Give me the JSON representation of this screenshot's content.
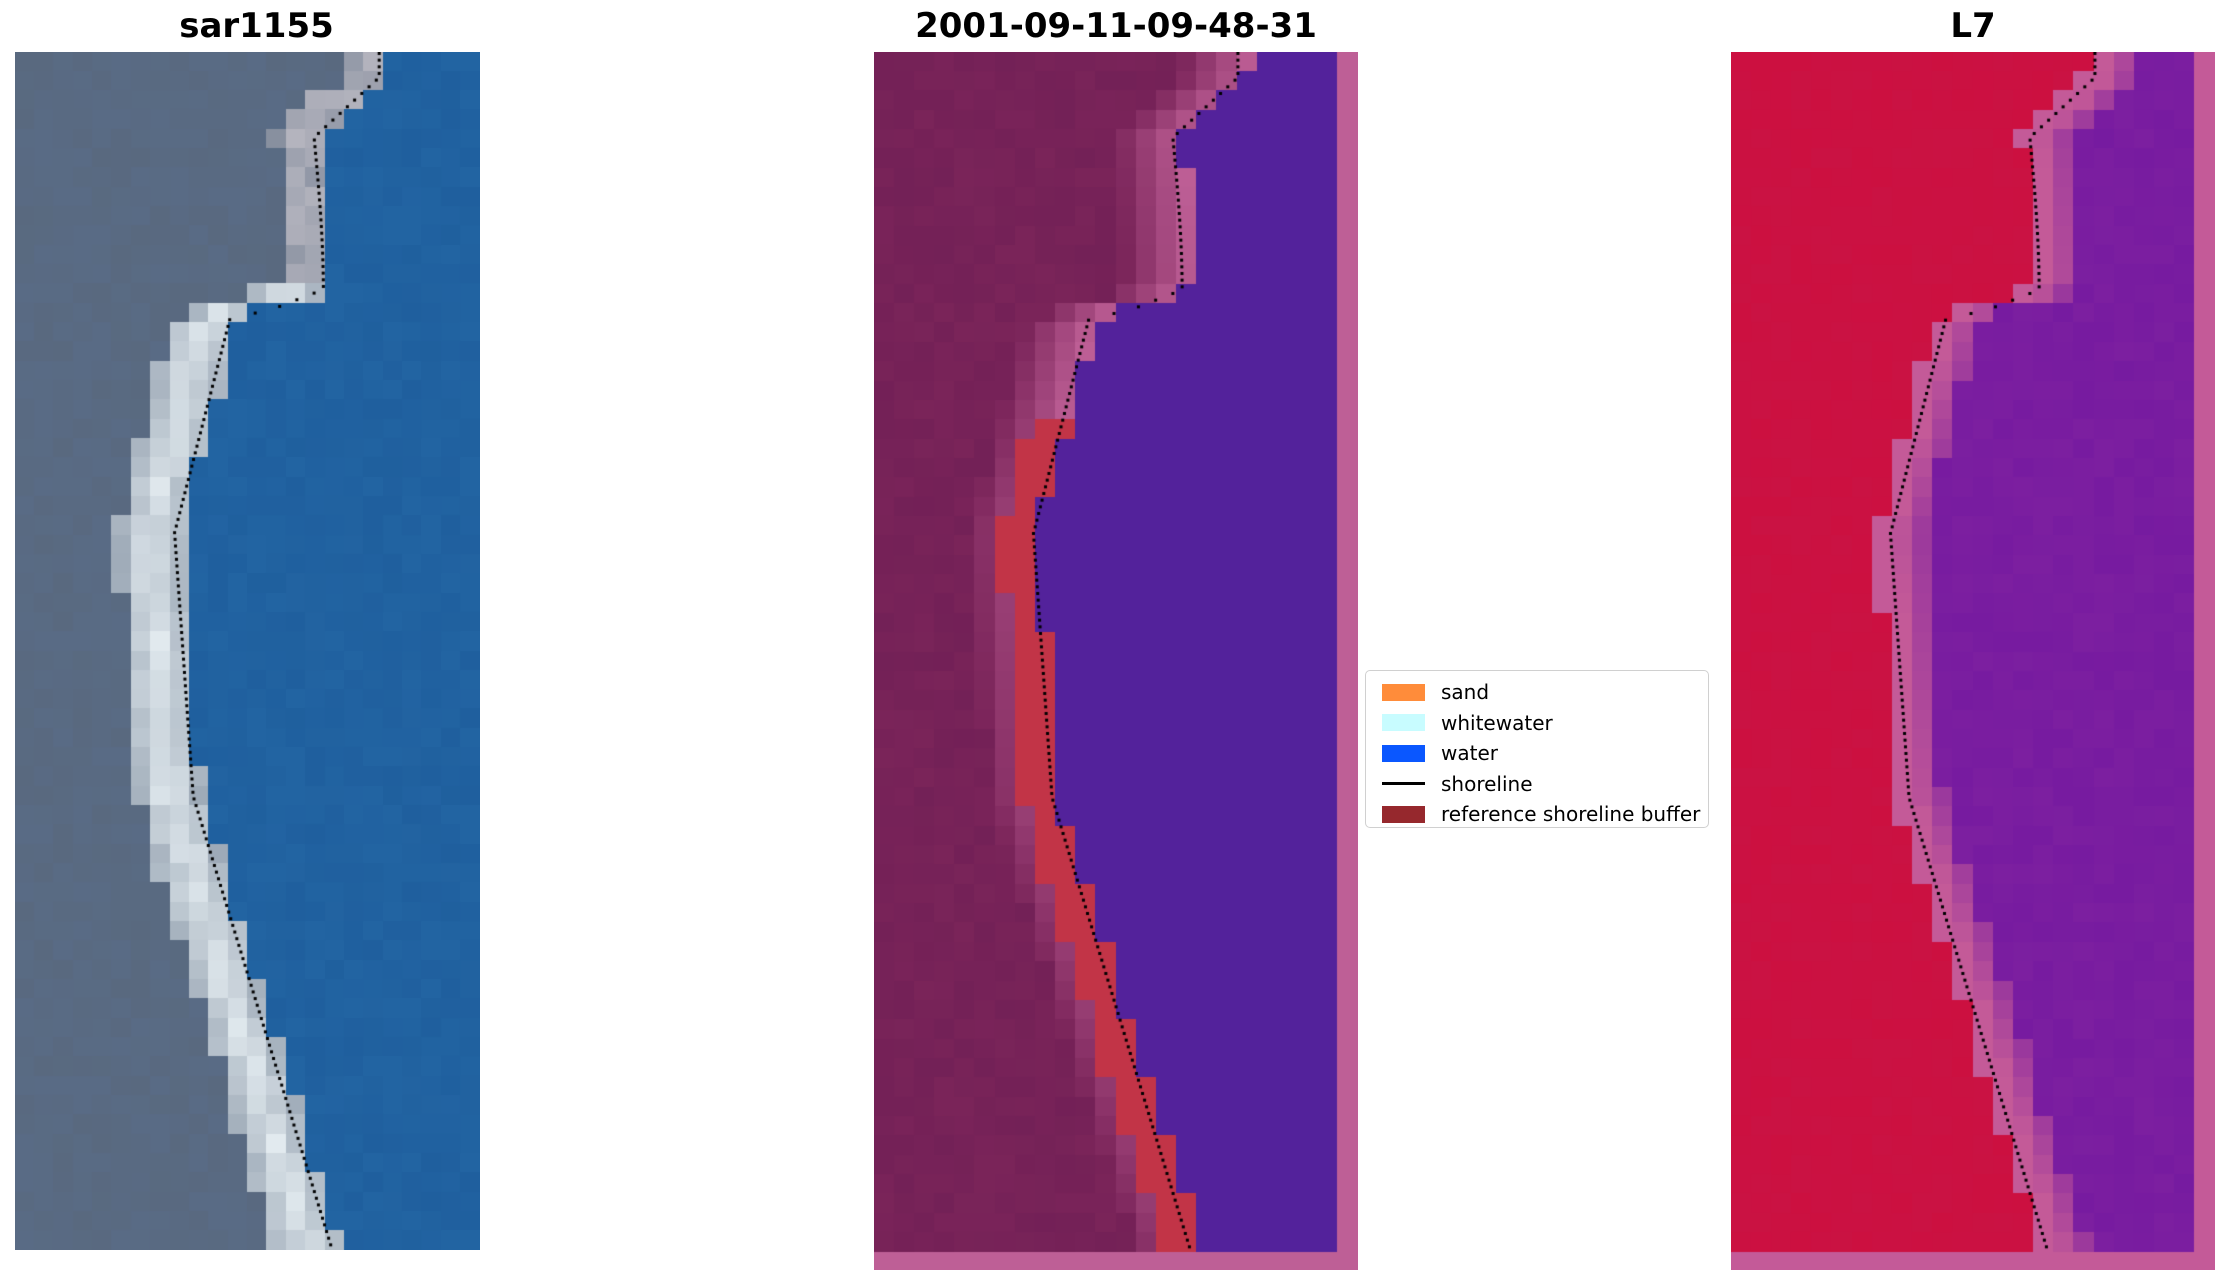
{
  "panels": [
    {
      "title": "sar1155",
      "kind": "rgb"
    },
    {
      "title": "2001-09-11-09-48-31",
      "kind": "classified"
    },
    {
      "title": "L7",
      "kind": "mndwi"
    }
  ],
  "legend": {
    "items": [
      {
        "label": "sand",
        "type": "patch",
        "color": "#ff8c3a"
      },
      {
        "label": "whitewater",
        "type": "patch",
        "color": "#c8fcff"
      },
      {
        "label": "water",
        "type": "patch",
        "color": "#0a57ff"
      },
      {
        "label": "shoreline",
        "type": "line",
        "color": "#000000"
      },
      {
        "label": "reference shoreline buffer",
        "type": "patch",
        "color": "#96282d"
      }
    ]
  },
  "colors": {
    "rgb_water": "#1f5f9e",
    "rgb_land": "#59697f",
    "rgb_whitewater": "#e8f0f4",
    "classified_water": "#53229b",
    "classified_land": "#7a2459",
    "classified_buffer": "#c23447",
    "classified_edge": "#be5f96",
    "mndwi_land": "#cc1040",
    "mndwi_water": "#7c1fa0",
    "mndwi_edge": "#c45a98",
    "shoreline": "#000000"
  }
}
